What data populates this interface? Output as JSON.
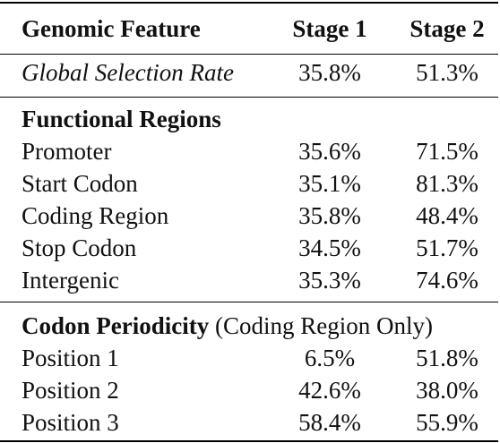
{
  "header": {
    "feature": "Genomic Feature",
    "stage1": "Stage 1",
    "stage2": "Stage 2"
  },
  "global": {
    "label": "Global Selection Rate",
    "stage1": "35.8%",
    "stage2": "51.3%"
  },
  "functional": {
    "heading": "Functional Regions",
    "rows": [
      {
        "label": "Promoter",
        "stage1": "35.6%",
        "stage2": "71.5%"
      },
      {
        "label": "Start Codon",
        "stage1": "35.1%",
        "stage2": "81.3%"
      },
      {
        "label": "Coding Region",
        "stage1": "35.8%",
        "stage2": "48.4%"
      },
      {
        "label": "Stop Codon",
        "stage1": "34.5%",
        "stage2": "51.7%"
      },
      {
        "label": "Intergenic",
        "stage1": "35.3%",
        "stage2": "74.6%"
      }
    ]
  },
  "periodicity": {
    "heading": "Codon Periodicity",
    "note": "(Coding Region Only)",
    "rows": [
      {
        "label": "Position 1",
        "stage1": "6.5%",
        "stage2": "51.8%"
      },
      {
        "label": "Position 2",
        "stage1": "42.6%",
        "stage2": "38.0%"
      },
      {
        "label": "Position 3",
        "stage1": "58.4%",
        "stage2": "55.9%"
      }
    ]
  }
}
